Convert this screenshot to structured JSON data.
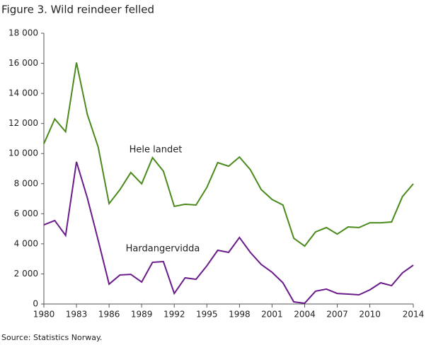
{
  "chart_data": {
    "type": "line",
    "title": "Figure 3. Wild reindeer felled",
    "source": "Source: Statistics Norway.",
    "x": [
      1980,
      1981,
      1982,
      1983,
      1984,
      1985,
      1986,
      1987,
      1988,
      1989,
      1990,
      1991,
      1992,
      1993,
      1994,
      1995,
      1996,
      1997,
      1998,
      1999,
      2000,
      2001,
      2002,
      2003,
      2004,
      2005,
      2006,
      2007,
      2008,
      2009,
      2010,
      2011,
      2012,
      2013,
      2014
    ],
    "series": [
      {
        "name": "Hele landet",
        "color": "#4a8a1c",
        "values": [
          10650,
          12300,
          11450,
          16050,
          12600,
          10430,
          6670,
          7600,
          8740,
          7990,
          9730,
          8830,
          6490,
          6630,
          6580,
          7750,
          9400,
          9160,
          9770,
          8930,
          7610,
          6950,
          6580,
          4370,
          3850,
          4790,
          5080,
          4650,
          5120,
          5080,
          5400,
          5400,
          5450,
          7140,
          7990
        ]
      },
      {
        "name": "Hardangervidda",
        "color": "#6a1a8a",
        "values": [
          5260,
          5550,
          4560,
          9450,
          7050,
          4230,
          1320,
          1930,
          1970,
          1460,
          2770,
          2820,
          700,
          1740,
          1640,
          2540,
          3570,
          3430,
          4420,
          3430,
          2630,
          2110,
          1410,
          140,
          50,
          850,
          990,
          700,
          660,
          610,
          940,
          1410,
          1220,
          2070,
          2580
        ]
      }
    ],
    "xlim": [
      1980,
      2014
    ],
    "xticks": [
      1980,
      1983,
      1986,
      1989,
      1992,
      1995,
      1998,
      2001,
      2004,
      2007,
      2010,
      2014
    ],
    "ylim": [
      0,
      18000
    ],
    "yticks": [
      0,
      {
        "value": 2000,
        "label": "2 000"
      },
      {
        "value": 4000,
        "label": "4 000"
      },
      {
        "value": 6000,
        "label": "6 000"
      },
      {
        "value": 8000,
        "label": "8 000"
      },
      {
        "value": 10000,
        "label": "10 000"
      },
      {
        "value": 12000,
        "label": "12 000"
      },
      {
        "value": 14000,
        "label": "14 000"
      },
      {
        "value": 16000,
        "label": "16 000"
      },
      {
        "value": 18000,
        "label": "18 000"
      }
    ],
    "grid": false
  }
}
